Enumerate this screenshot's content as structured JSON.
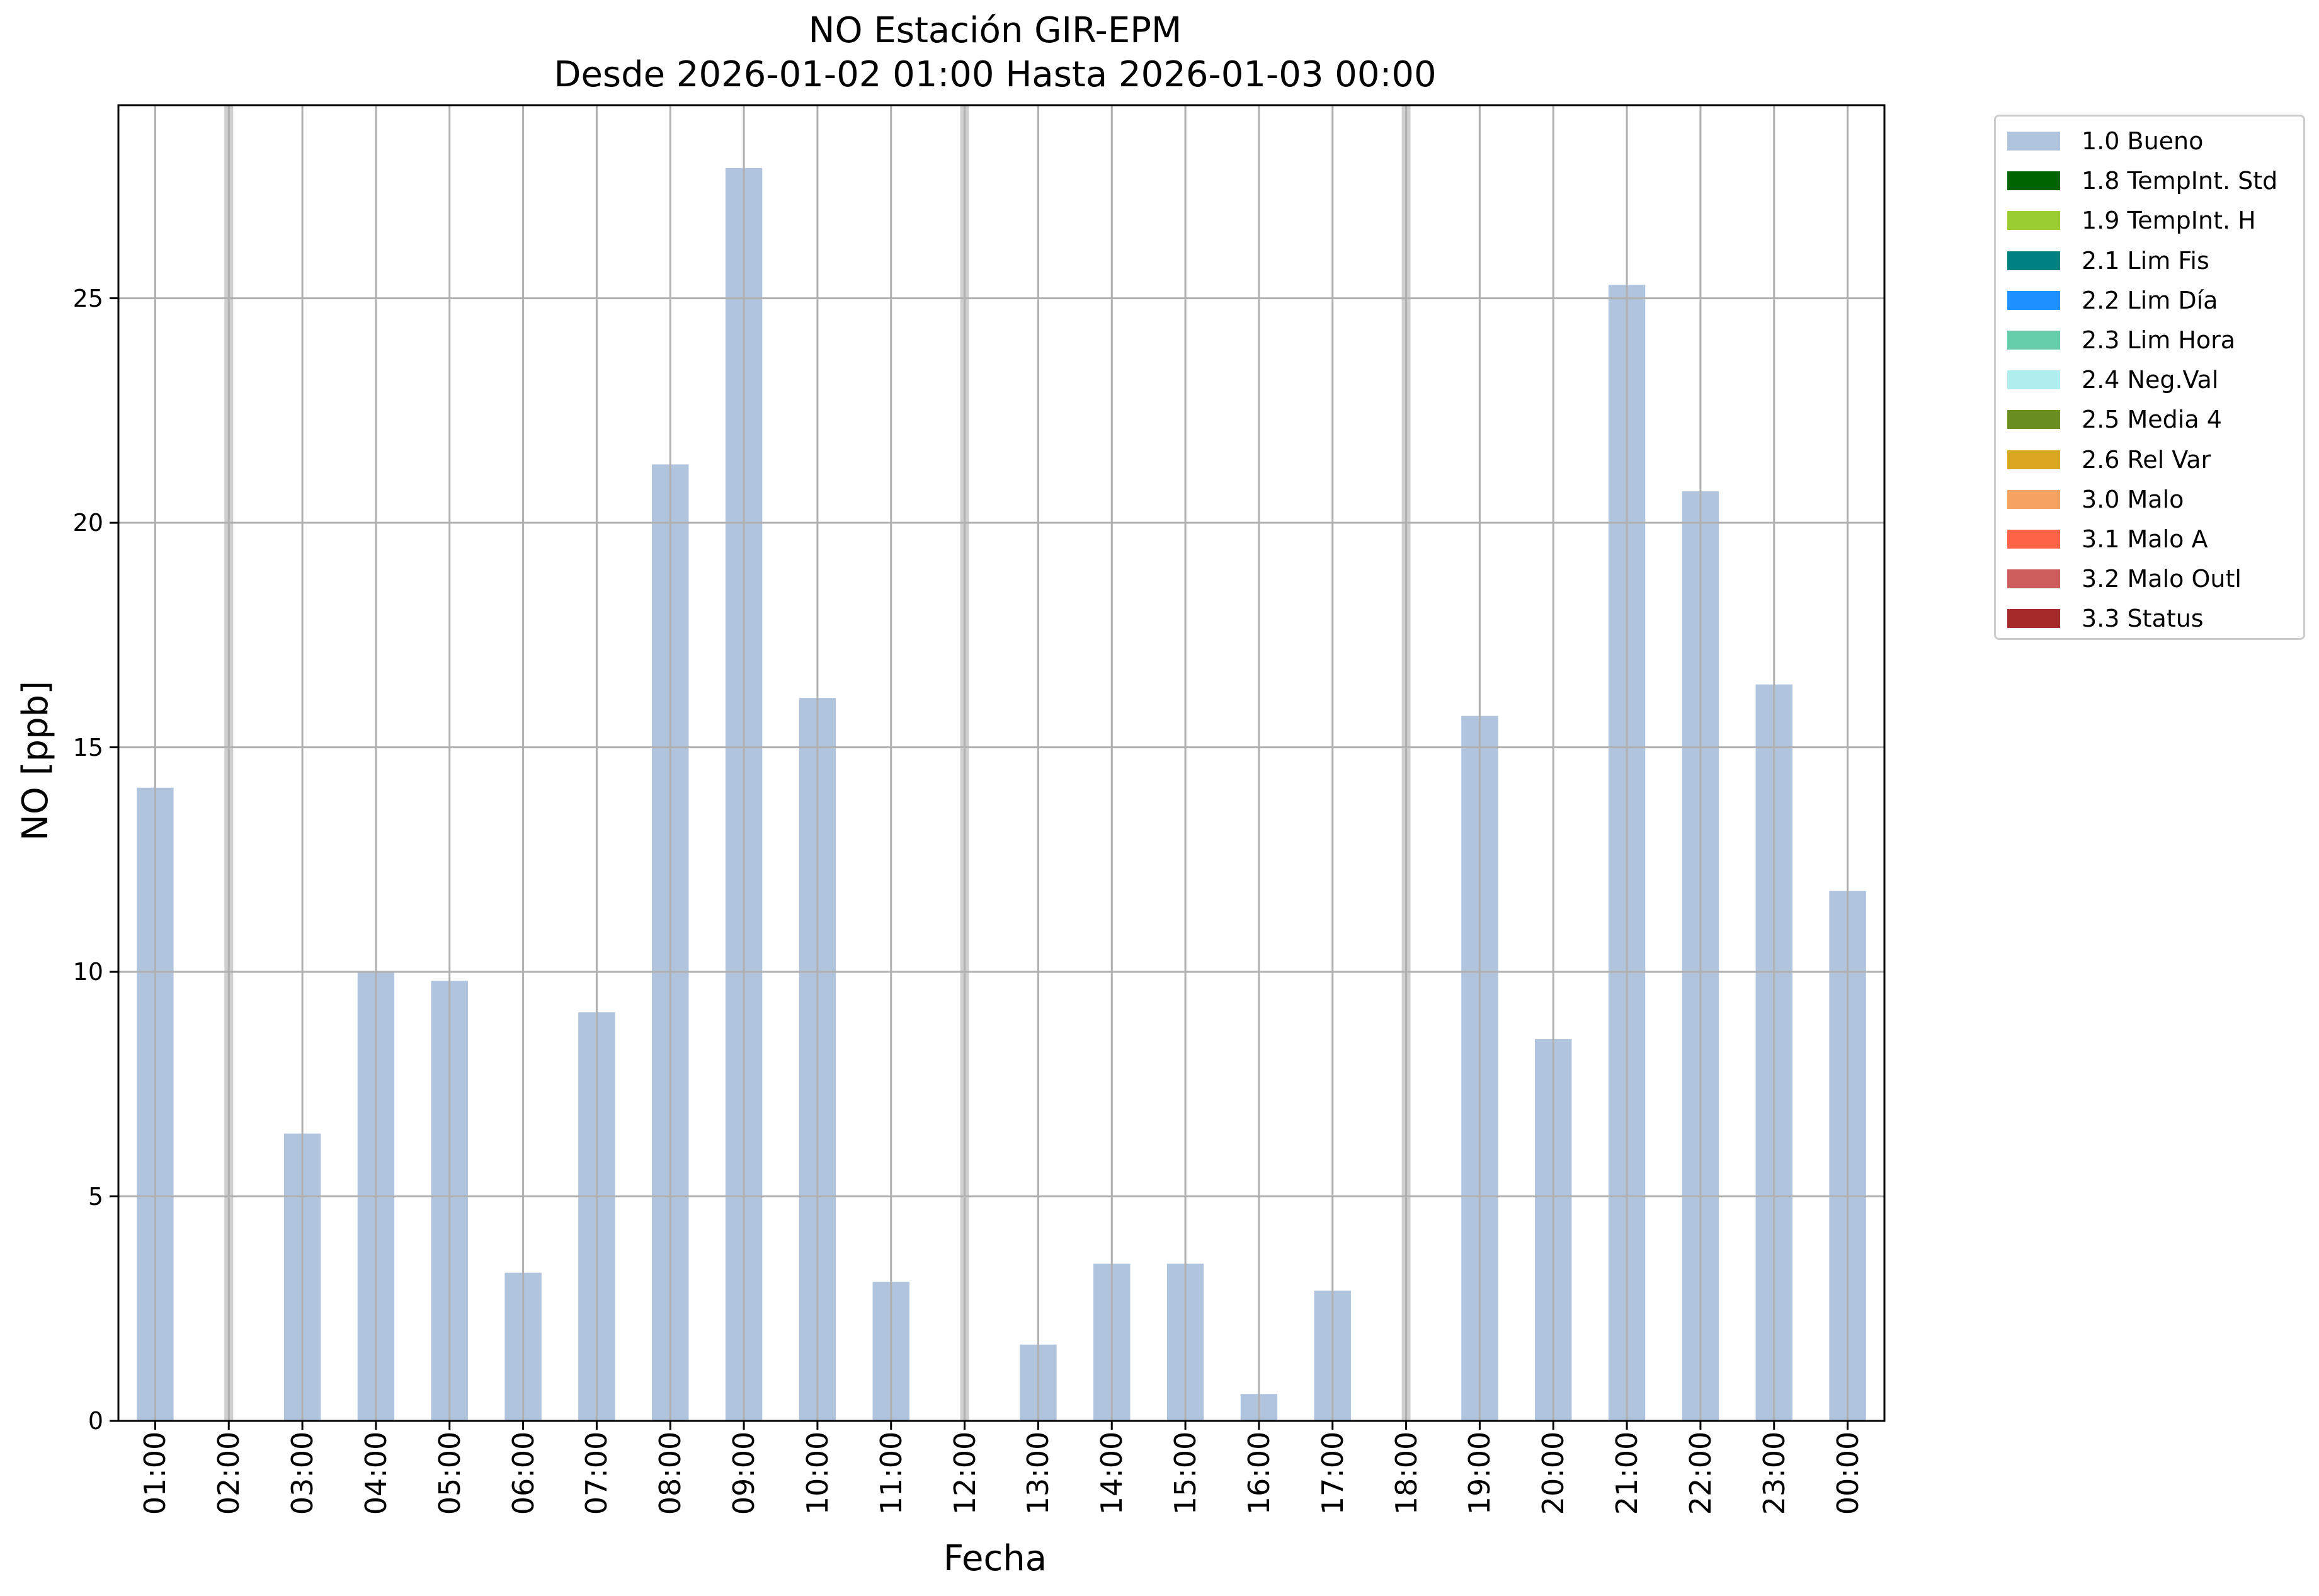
{
  "chart_data": {
    "type": "bar",
    "title": "NO Estación GIR-EPM",
    "subtitle": "Desde 2026-01-02 01:00 Hasta 2026-01-03 00:00",
    "xlabel": "Fecha",
    "ylabel": "NO [ppb]",
    "ylim": [
      0,
      29.3
    ],
    "yticks": [
      0,
      5,
      10,
      15,
      20,
      25
    ],
    "grid": true,
    "legend_position": "outside right",
    "categories": [
      "01:00",
      "02:00",
      "03:00",
      "04:00",
      "05:00",
      "06:00",
      "07:00",
      "08:00",
      "09:00",
      "10:00",
      "11:00",
      "12:00",
      "13:00",
      "14:00",
      "15:00",
      "16:00",
      "17:00",
      "18:00",
      "19:00",
      "20:00",
      "21:00",
      "22:00",
      "23:00",
      "00:00"
    ],
    "missing_marker_color": "#cfcfcf",
    "series": [
      {
        "name": "1.0 Bueno",
        "color": "#b0c4de",
        "values": [
          14.1,
          null,
          6.4,
          10.0,
          9.8,
          3.3,
          9.1,
          21.3,
          27.9,
          16.1,
          3.1,
          null,
          1.7,
          3.5,
          3.5,
          0.6,
          2.9,
          null,
          15.7,
          8.5,
          25.3,
          20.7,
          16.4,
          11.8
        ]
      }
    ],
    "legend": [
      {
        "label": "1.0 Bueno",
        "color": "#b0c4de"
      },
      {
        "label": "1.8 TempInt. Std",
        "color": "#006400"
      },
      {
        "label": "1.9 TempInt. H",
        "color": "#9acd32"
      },
      {
        "label": "2.1 Lim Fis",
        "color": "#008080"
      },
      {
        "label": "2.2 Lim Día",
        "color": "#1e90ff"
      },
      {
        "label": "2.3 Lim Hora",
        "color": "#66cdaa"
      },
      {
        "label": "2.4 Neg.Val",
        "color": "#afeeee"
      },
      {
        "label": "2.5 Media 4",
        "color": "#6b8e23"
      },
      {
        "label": "2.6 Rel Var",
        "color": "#daa520"
      },
      {
        "label": "3.0 Malo",
        "color": "#f4a460"
      },
      {
        "label": "3.1 Malo A",
        "color": "#ff6347"
      },
      {
        "label": "3.2 Malo Outl",
        "color": "#cd5c5c"
      },
      {
        "label": "3.3 Status",
        "color": "#a52a2a"
      }
    ]
  }
}
